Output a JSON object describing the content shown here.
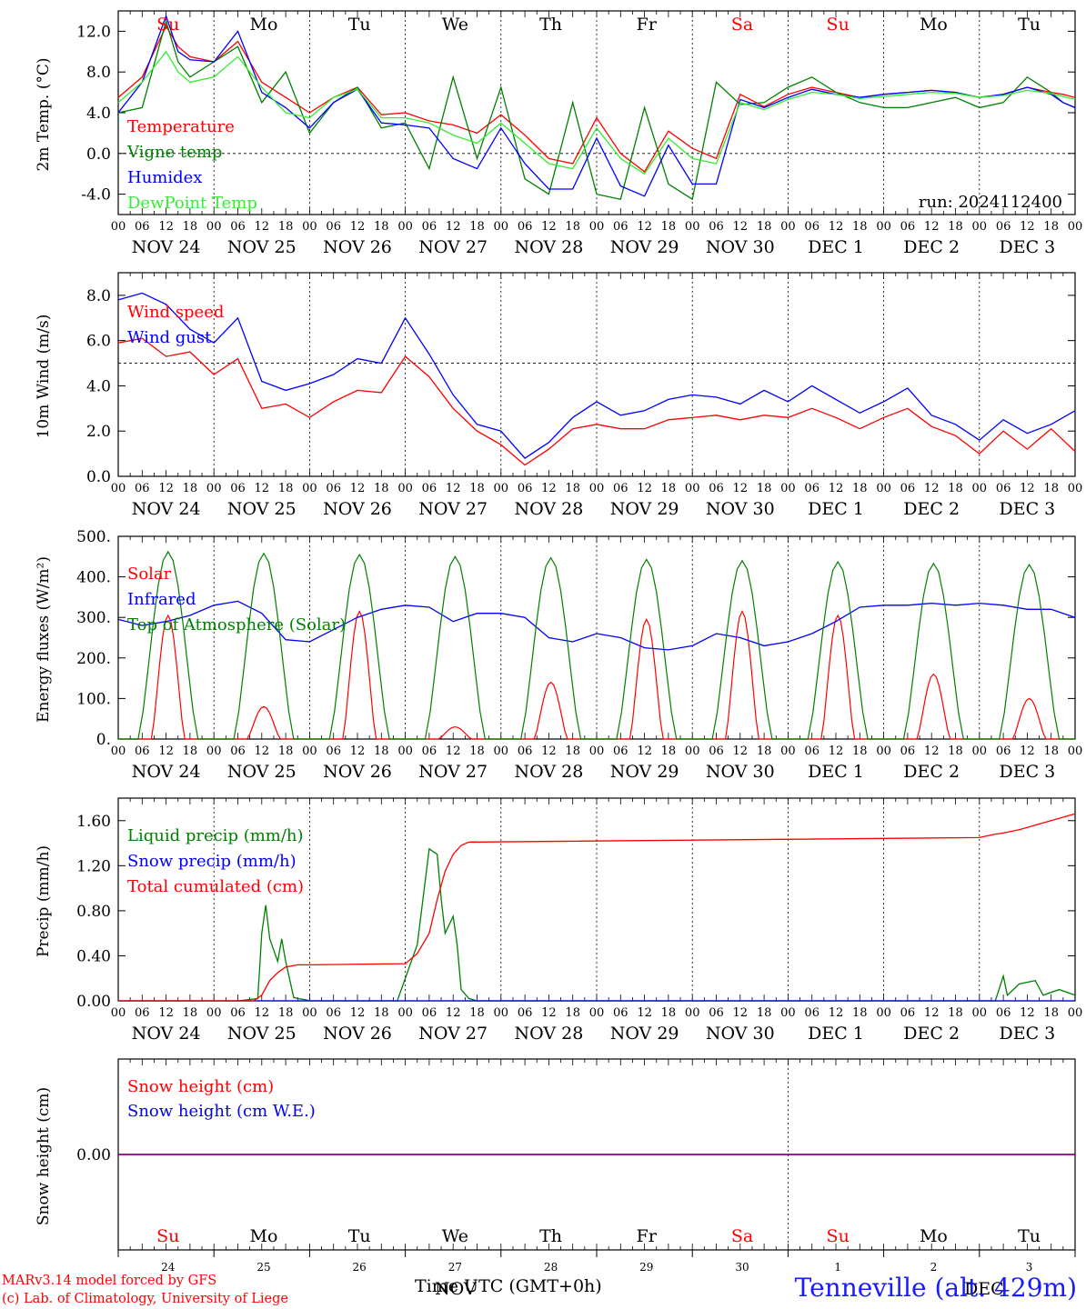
{
  "footer": {
    "credit_line1": "MARv3.14 model forced by GFS",
    "credit_line2": "(c) Lab. of Climatology, University of Liege",
    "time_label": "Time UTC (GMT+0h)",
    "overlap_label": "NOV",
    "overlap_label2": "DEC",
    "station": "Tenneville (alt. 429m)"
  },
  "colors": {
    "red": "#ff0000",
    "green": "#008000",
    "blue": "#0000ff",
    "lime": "#33ee33",
    "purple": "#800080",
    "weekend": "#ff0000"
  },
  "day_names": [
    "Su",
    "Mo",
    "Tu",
    "We",
    "Th",
    "Fr",
    "Sa",
    "Su",
    "Mo",
    "Tu"
  ],
  "weekend_flags": [
    true,
    false,
    false,
    false,
    false,
    false,
    true,
    true,
    false,
    false
  ],
  "date_labels": [
    "NOV 24",
    "NOV 25",
    "NOV 26",
    "NOV 27",
    "NOV 28",
    "NOV 29",
    "NOV 30",
    "DEC  1",
    "DEC  2",
    "DEC  3"
  ],
  "day_numbers": [
    "24",
    "25",
    "26",
    "27",
    "28",
    "29",
    "30",
    "1",
    "2",
    "3"
  ],
  "hour_labels": [
    "00",
    "06",
    "12",
    "18"
  ],
  "chart_data": [
    {
      "type": "line",
      "ylabel": "2m Temp. (°C)",
      "ylim": [
        -6,
        14
      ],
      "yticks": [
        -4,
        0,
        4,
        8,
        12
      ],
      "ytick_labels": [
        "-4.0",
        "0.0",
        "4.0",
        "8.0",
        "12.0"
      ],
      "reference_line": 0,
      "annotation": "run: 2024112400",
      "x_unit": "hours since NOV 24 00 UTC",
      "series": [
        {
          "name": "Temperature",
          "color": "red",
          "x": [
            0,
            6,
            12,
            15,
            18,
            24,
            30,
            36,
            42,
            48,
            54,
            60,
            66,
            72,
            78,
            84,
            90,
            96,
            102,
            108,
            114,
            120,
            126,
            132,
            138,
            144,
            150,
            156,
            162,
            168,
            174,
            180,
            186,
            192,
            198,
            204,
            210,
            216,
            222,
            228,
            234,
            237,
            240
          ],
          "values": [
            5.5,
            7.5,
            12.5,
            10.5,
            9.5,
            9,
            11,
            7,
            5.5,
            4,
            5.5,
            6.5,
            3.8,
            4,
            3.2,
            2.8,
            2,
            3.8,
            1.8,
            -0.5,
            -1,
            3.5,
            0,
            -1.8,
            2.2,
            0.5,
            -0.5,
            5.8,
            4.6,
            5.8,
            6.5,
            6,
            5.5,
            5.8,
            6,
            6.2,
            6,
            5.5,
            5.8,
            6.5,
            6,
            5.8,
            5.5
          ]
        },
        {
          "name": "Vigne temp",
          "color": "green",
          "x": [
            0,
            6,
            12,
            15,
            18,
            24,
            30,
            36,
            42,
            48,
            54,
            60,
            66,
            72,
            78,
            84,
            90,
            96,
            102,
            108,
            114,
            120,
            126,
            132,
            138,
            144,
            150,
            156,
            162,
            168,
            174,
            180,
            186,
            192,
            198,
            204,
            210,
            216,
            222,
            228,
            234,
            237,
            240
          ],
          "values": [
            4,
            4.5,
            13,
            9,
            7.5,
            9,
            10.5,
            5,
            8,
            2,
            5,
            6.5,
            2.5,
            3,
            -1.5,
            7.5,
            -0.5,
            6.5,
            -2.5,
            -4,
            5,
            -4,
            -4.5,
            4.5,
            -3,
            -4.5,
            7,
            4.8,
            5,
            6.5,
            7.5,
            6,
            5,
            4.5,
            4.5,
            5,
            5.5,
            4.5,
            5,
            7.5,
            6,
            5,
            4.5
          ]
        },
        {
          "name": "Humidex",
          "color": "blue",
          "x": [
            0,
            6,
            12,
            15,
            18,
            24,
            30,
            36,
            42,
            48,
            54,
            60,
            66,
            72,
            78,
            84,
            90,
            96,
            102,
            108,
            114,
            120,
            126,
            132,
            138,
            144,
            150,
            156,
            162,
            168,
            174,
            180,
            186,
            192,
            198,
            204,
            210,
            216,
            222,
            228,
            234,
            237,
            240
          ],
          "values": [
            4,
            7,
            13.5,
            10,
            9.2,
            9,
            12,
            6,
            4.5,
            2.5,
            5,
            6.3,
            3,
            2.8,
            2.5,
            -0.5,
            -1.5,
            2.5,
            -1,
            -3.5,
            -3.5,
            1.5,
            -3.2,
            -4.2,
            0.8,
            -3,
            -3,
            5.3,
            4.5,
            5.5,
            6.3,
            5.8,
            5.5,
            5.8,
            6,
            6.2,
            6,
            5.5,
            5.8,
            6.5,
            5.8,
            5,
            4.5
          ]
        },
        {
          "name": "DewPoint Temp",
          "color": "lime",
          "x": [
            0,
            6,
            12,
            15,
            18,
            24,
            30,
            36,
            42,
            48,
            54,
            60,
            66,
            72,
            78,
            84,
            90,
            96,
            102,
            108,
            114,
            120,
            126,
            132,
            138,
            144,
            150,
            156,
            162,
            168,
            174,
            180,
            186,
            192,
            198,
            204,
            210,
            216,
            222,
            228,
            234,
            237,
            240
          ],
          "values": [
            5,
            7,
            10,
            8,
            7,
            7.5,
            9.5,
            6.5,
            4,
            3.5,
            5.5,
            6.3,
            3.5,
            3.5,
            3,
            1.8,
            1,
            3,
            1,
            -1,
            -1.5,
            2.5,
            -0.5,
            -2,
            1.5,
            -0.5,
            -1,
            5,
            4.3,
            5.3,
            6,
            5.8,
            5.4,
            5.6,
            5.8,
            6,
            5.9,
            5.5,
            5.7,
            6.2,
            5.9,
            5.6,
            5.3
          ]
        }
      ]
    },
    {
      "type": "line",
      "ylabel": "10m Wind (m/s)",
      "ylim": [
        0,
        9
      ],
      "yticks": [
        0,
        2,
        4,
        6,
        8
      ],
      "ytick_labels": [
        "0.0",
        "2.0",
        "4.0",
        "6.0",
        "8.0"
      ],
      "reference_line": 5,
      "x_unit": "hours since NOV 24 00 UTC",
      "series": [
        {
          "name": "Wind speed",
          "color": "red",
          "x": [
            0,
            6,
            12,
            18,
            24,
            30,
            36,
            42,
            48,
            54,
            60,
            66,
            72,
            78,
            84,
            90,
            96,
            102,
            108,
            114,
            120,
            126,
            132,
            138,
            144,
            150,
            156,
            162,
            168,
            174,
            180,
            186,
            192,
            198,
            204,
            210,
            216,
            222,
            228,
            234,
            240
          ],
          "values": [
            5.9,
            6.1,
            5.3,
            5.5,
            4.5,
            5.2,
            3,
            3.2,
            2.6,
            3.3,
            3.8,
            3.7,
            5.3,
            4.4,
            3,
            2,
            1.4,
            0.5,
            1.2,
            2.1,
            2.3,
            2.1,
            2.1,
            2.5,
            2.6,
            2.7,
            2.5,
            2.7,
            2.6,
            3,
            2.6,
            2.1,
            2.6,
            3,
            2.2,
            1.8,
            1,
            2,
            1.2,
            2.1,
            1.1
          ]
        },
        {
          "name": "Wind gust",
          "color": "blue",
          "x": [
            0,
            6,
            12,
            18,
            24,
            30,
            36,
            42,
            48,
            54,
            60,
            66,
            72,
            78,
            84,
            90,
            96,
            102,
            108,
            114,
            120,
            126,
            132,
            138,
            144,
            150,
            156,
            162,
            168,
            174,
            180,
            186,
            192,
            198,
            204,
            210,
            216,
            222,
            228,
            234,
            240
          ],
          "values": [
            7.8,
            8.1,
            7.6,
            6.5,
            5.9,
            7,
            4.2,
            3.8,
            4.1,
            4.5,
            5.2,
            5,
            7,
            5.4,
            3.6,
            2.3,
            2,
            0.8,
            1.5,
            2.6,
            3.3,
            2.7,
            2.9,
            3.4,
            3.6,
            3.5,
            3.2,
            3.8,
            3.3,
            4,
            3.4,
            2.8,
            3.3,
            3.9,
            2.7,
            2.3,
            1.6,
            2.5,
            1.9,
            2.3,
            2.9
          ]
        }
      ]
    },
    {
      "type": "line",
      "ylabel": "Energy fluxes (W/m²)",
      "ylim": [
        0,
        500
      ],
      "yticks": [
        0,
        100,
        200,
        300,
        400,
        500
      ],
      "ytick_labels": [
        "0.",
        "100.",
        "200.",
        "300.",
        "400.",
        "500."
      ],
      "x_unit": "hours since NOV 24 00 UTC",
      "series": [
        {
          "name": "Solar",
          "color": "red",
          "peak_values": [
            305,
            80,
            315,
            30,
            140,
            295,
            315,
            305,
            160,
            100
          ]
        },
        {
          "name": "Infrared",
          "color": "blue",
          "x": [
            0,
            6,
            12,
            18,
            24,
            30,
            36,
            42,
            48,
            54,
            60,
            66,
            72,
            78,
            84,
            90,
            96,
            102,
            108,
            114,
            120,
            126,
            132,
            138,
            144,
            150,
            156,
            162,
            168,
            174,
            180,
            186,
            192,
            198,
            204,
            210,
            216,
            222,
            228,
            234,
            240
          ],
          "values": [
            295,
            280,
            290,
            305,
            330,
            340,
            310,
            245,
            240,
            270,
            300,
            320,
            330,
            325,
            290,
            310,
            310,
            300,
            250,
            240,
            260,
            250,
            225,
            220,
            230,
            260,
            250,
            230,
            240,
            260,
            290,
            325,
            330,
            330,
            335,
            330,
            335,
            330,
            320,
            320,
            300
          ]
        },
        {
          "name": "Top of Atmosphere (Solar)",
          "color": "green",
          "peak_values": [
            462,
            458,
            455,
            450,
            447,
            443,
            440,
            437,
            433,
            430
          ]
        }
      ]
    },
    {
      "type": "line",
      "ylabel": "Precip (mm/h)",
      "ylim": [
        0,
        1.8
      ],
      "yticks": [
        0,
        0.4,
        0.8,
        1.2,
        1.6
      ],
      "ytick_labels": [
        "0.00",
        "0.40",
        "0.80",
        "1.20",
        "1.60"
      ],
      "x_unit": "hours since NOV 24 00 UTC",
      "series": [
        {
          "name": "Liquid precip (mm/h)",
          "color": "green",
          "x": [
            0,
            30,
            35,
            36,
            37,
            38,
            40,
            41,
            42,
            44,
            45,
            47,
            48,
            70,
            75,
            78,
            80,
            81,
            82,
            84,
            85,
            86,
            88,
            90,
            220,
            222,
            223,
            226,
            230,
            232,
            236,
            240
          ],
          "values": [
            0,
            0,
            0.02,
            0.6,
            0.85,
            0.55,
            0.35,
            0.55,
            0.35,
            0.03,
            0.02,
            0.01,
            0,
            0,
            0.5,
            1.35,
            1.3,
            0.9,
            0.6,
            0.75,
            0.5,
            0.1,
            0.02,
            0,
            0,
            0.22,
            0.05,
            0.15,
            0.18,
            0.05,
            0.1,
            0.05
          ]
        },
        {
          "name": "Snow precip (mm/h)",
          "color": "blue",
          "x": [
            0,
            240
          ],
          "values": [
            0,
            0
          ]
        },
        {
          "name": "Total cumulated (cm)",
          "color": "red",
          "x": [
            0,
            34,
            36,
            38,
            40,
            42,
            45,
            48,
            72,
            75,
            78,
            80,
            82,
            84,
            86,
            88,
            90,
            216,
            220,
            222,
            226,
            230,
            236,
            240
          ],
          "values": [
            0,
            0,
            0.05,
            0.18,
            0.25,
            0.3,
            0.32,
            0.32,
            0.33,
            0.42,
            0.6,
            0.9,
            1.15,
            1.3,
            1.38,
            1.41,
            1.41,
            1.45,
            1.48,
            1.49,
            1.52,
            1.56,
            1.62,
            1.66
          ]
        }
      ]
    },
    {
      "type": "line",
      "ylabel": "Snow height (cm)",
      "yticks": [
        0
      ],
      "ytick_labels": [
        "0.00"
      ],
      "x_unit": "hours since NOV 24 00 UTC",
      "series": [
        {
          "name": "Snow height (cm)",
          "color": "red",
          "x": [
            0,
            240
          ],
          "values": [
            0,
            0
          ]
        },
        {
          "name": "Snow height (cm W.E.)",
          "color": "blue",
          "x": [
            0,
            240
          ],
          "values": [
            0,
            0
          ]
        }
      ]
    }
  ]
}
